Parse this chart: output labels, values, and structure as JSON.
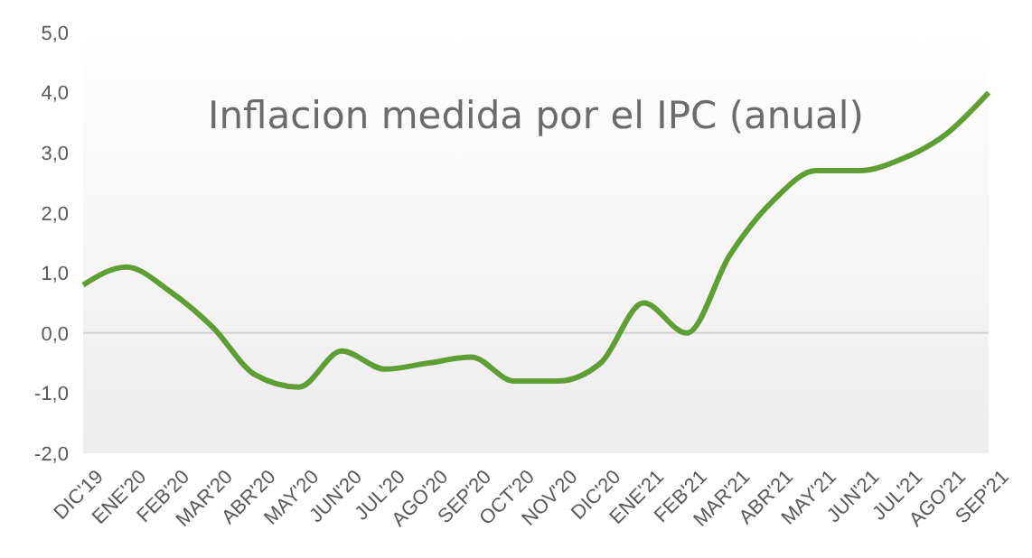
{
  "chart_data": {
    "type": "line",
    "title": "Inflacion medida por el IPC (anual)",
    "categories": [
      "DIC'19",
      "ENE'20",
      "FEB'20",
      "MAR'20",
      "ABR'20",
      "MAY'20",
      "JUN'20",
      "JUL'20",
      "AGO'20",
      "SEP'20",
      "OCT'20",
      "NOV'20",
      "DIC'20",
      "ENE'21",
      "FEB'21",
      "MAR'21",
      "ABR'21",
      "MAY'21",
      "JUN'21",
      "JUL'21",
      "AGO'21",
      "SEP'21"
    ],
    "series": [
      {
        "color": "#5e9e35",
        "values": [
          0.8,
          1.1,
          0.7,
          0.1,
          -0.7,
          -0.9,
          -0.3,
          -0.6,
          -0.5,
          -0.4,
          -0.8,
          -0.8,
          -0.5,
          0.5,
          0.0,
          1.3,
          2.2,
          2.7,
          2.7,
          2.9,
          3.3,
          4.0
        ]
      }
    ],
    "ylim": [
      -2,
      5
    ],
    "yticks": [
      {
        "value": -2,
        "label": "-2,0"
      },
      {
        "value": -1,
        "label": "-1,0"
      },
      {
        "value": 0,
        "label": "0,0"
      },
      {
        "value": 1,
        "label": "1,0"
      },
      {
        "value": 2,
        "label": "2,0"
      },
      {
        "value": 3,
        "label": "3,0"
      },
      {
        "value": 4,
        "label": "4,0"
      },
      {
        "value": 5,
        "label": "5,0"
      }
    ],
    "ref_lines": [
      {
        "axis": "y",
        "value": 0,
        "color": "#d0d0d0"
      }
    ],
    "grid": false,
    "marker": "none",
    "line_style": "solid"
  }
}
